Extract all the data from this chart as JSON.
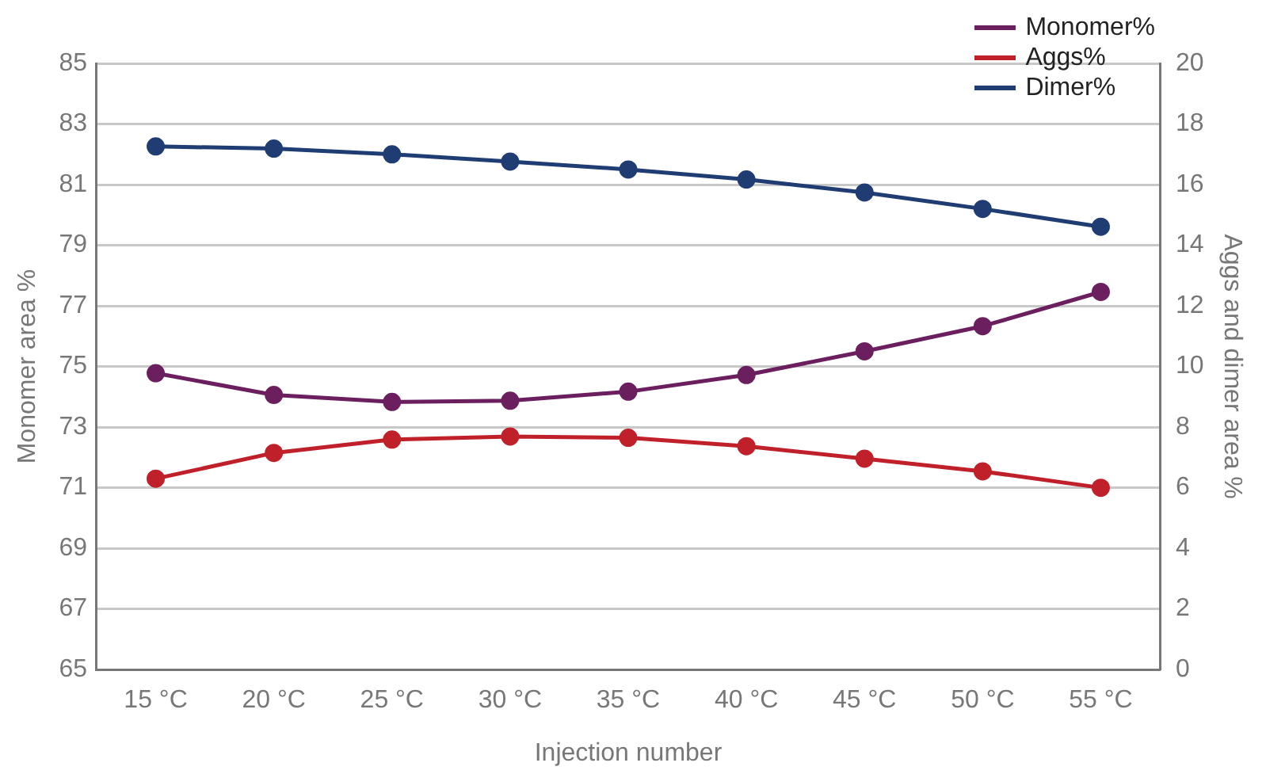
{
  "chart_data": {
    "type": "line",
    "xlabel": "Injection number",
    "ylabel": "Monomer area %",
    "y2label": "Aggs and dimer area %",
    "categories": [
      "15 °C",
      "20 °C",
      "25 °C",
      "30 °C",
      "35 °C",
      "40 °C",
      "45 °C",
      "50 °C",
      "55 °C"
    ],
    "series": [
      {
        "name": "Monomer%",
        "color": "#6b1f5f",
        "values": [
          74.78,
          74.06,
          73.83,
          73.87,
          74.17,
          74.72,
          75.5,
          76.33,
          77.46
        ]
      },
      {
        "name": "Aggs%",
        "color": "#c0202a",
        "axis": "y2",
        "values": [
          6.3,
          7.15,
          7.59,
          7.69,
          7.65,
          7.37,
          6.96,
          6.54,
          6.0
        ]
      },
      {
        "name": "Dimer%",
        "color": "#1f3d73",
        "axis": "y2",
        "values": [
          17.26,
          17.19,
          17.0,
          16.76,
          16.5,
          16.17,
          15.74,
          15.2,
          14.61
        ]
      }
    ],
    "ylim": [
      65,
      85
    ],
    "yticks": [
      65,
      67,
      69,
      71,
      73,
      75,
      77,
      79,
      81,
      83,
      85
    ],
    "y2lim": [
      0,
      20
    ],
    "y2ticks": [
      0,
      2,
      4,
      6,
      8,
      10,
      12,
      14,
      16,
      18,
      20
    ],
    "grid": "y",
    "legend": "top right",
    "marker": "circle",
    "line_style": "solid"
  }
}
